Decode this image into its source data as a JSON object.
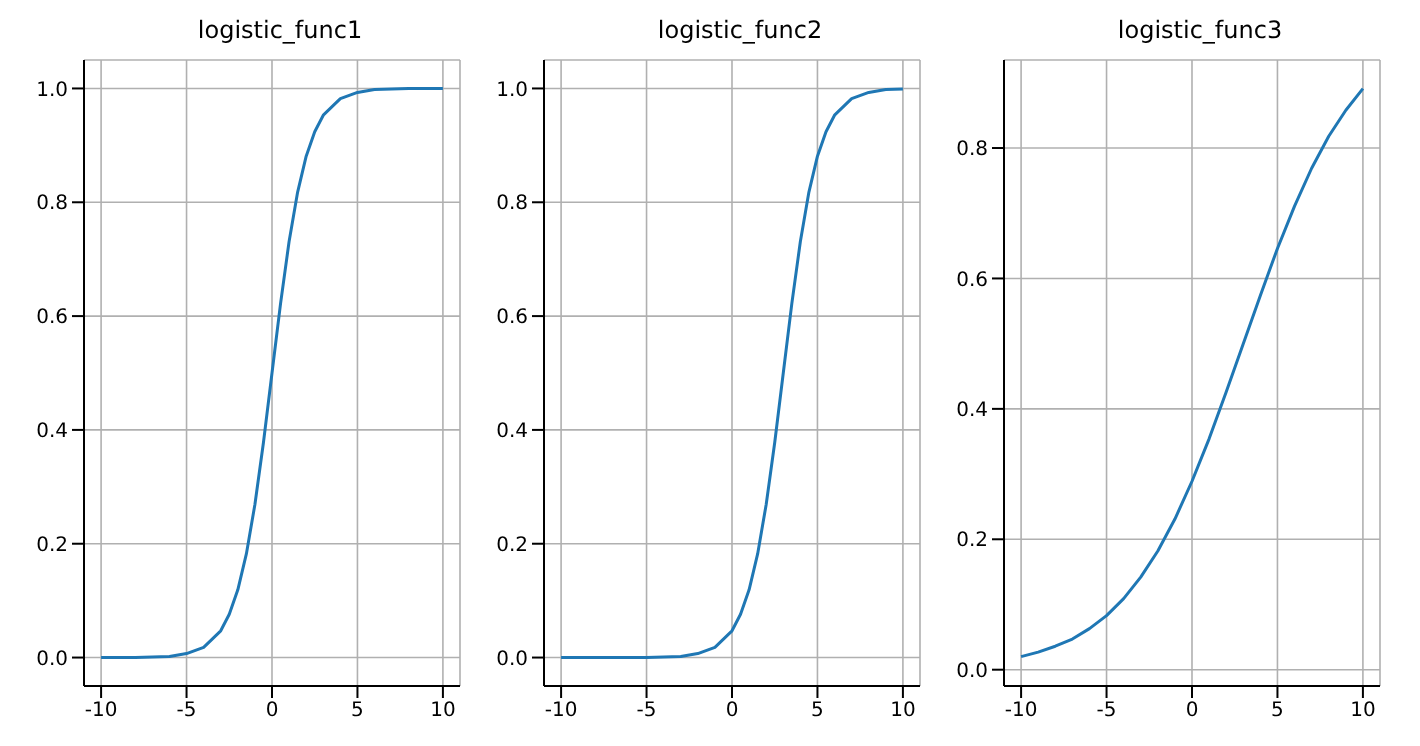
{
  "chart_data": [
    {
      "type": "line",
      "title": "logistic_func1",
      "x": [
        -10,
        -9,
        -8,
        -7,
        -6,
        -5,
        -4,
        -3,
        -2.5,
        -2,
        -1.5,
        -1,
        -0.5,
        0,
        0.5,
        1,
        1.5,
        2,
        2.5,
        3,
        4,
        5,
        6,
        7,
        8,
        9,
        10
      ],
      "series": [
        {
          "color": "#1f77b4",
          "values": [
            0,
            0,
            0,
            0.001,
            0.002,
            0.007,
            0.018,
            0.047,
            0.076,
            0.119,
            0.182,
            0.269,
            0.378,
            0.5,
            0.622,
            0.731,
            0.818,
            0.881,
            0.924,
            0.953,
            0.982,
            0.993,
            0.998,
            0.999,
            1,
            1,
            1
          ]
        }
      ],
      "xlim": [
        -11,
        11
      ],
      "xticks": [
        -10,
        -5,
        0,
        5,
        10
      ],
      "ylim": [
        -0.05,
        1.05
      ],
      "yticks": [
        {
          "value": 0,
          "label": "0.0"
        },
        {
          "value": 0.2,
          "label": "0.2"
        },
        {
          "value": 0.4,
          "label": "0.4"
        },
        {
          "value": 0.6,
          "label": "0.6"
        },
        {
          "value": 0.8,
          "label": "0.8"
        },
        {
          "value": 1,
          "label": "1.0"
        }
      ],
      "grid": true,
      "marker": "none",
      "line_style": "solid"
    },
    {
      "type": "line",
      "title": "logistic_func2",
      "x": [
        -10,
        -8,
        -6,
        -5,
        -4,
        -3,
        -2,
        -1,
        0,
        0.5,
        1,
        1.5,
        2,
        2.5,
        3,
        3.5,
        4,
        4.5,
        5,
        5.5,
        6,
        7,
        8,
        9,
        10
      ],
      "series": [
        {
          "color": "#1f77b4",
          "values": [
            0,
            0,
            0,
            0,
            0.001,
            0.002,
            0.007,
            0.018,
            0.047,
            0.076,
            0.119,
            0.182,
            0.269,
            0.378,
            0.5,
            0.622,
            0.731,
            0.818,
            0.881,
            0.924,
            0.953,
            0.982,
            0.993,
            0.998,
            0.999
          ]
        }
      ],
      "xlim": [
        -11,
        11
      ],
      "xticks": [
        -10,
        -5,
        0,
        5,
        10
      ],
      "ylim": [
        -0.05,
        1.05
      ],
      "yticks": [
        {
          "value": 0,
          "label": "0.0"
        },
        {
          "value": 0.2,
          "label": "0.2"
        },
        {
          "value": 0.4,
          "label": "0.4"
        },
        {
          "value": 0.6,
          "label": "0.6"
        },
        {
          "value": 0.8,
          "label": "0.8"
        },
        {
          "value": 1,
          "label": "1.0"
        }
      ],
      "grid": true,
      "marker": "none",
      "line_style": "solid"
    },
    {
      "type": "line",
      "title": "logistic_func3",
      "x": [
        -10,
        -9,
        -8,
        -7,
        -6,
        -5,
        -4,
        -3,
        -2,
        -1,
        0,
        1,
        2,
        3,
        4,
        5,
        6,
        7,
        8,
        9,
        10
      ],
      "series": [
        {
          "color": "#1f77b4",
          "values": [
            0.02,
            0.027,
            0.036,
            0.047,
            0.063,
            0.083,
            0.109,
            0.142,
            0.182,
            0.231,
            0.289,
            0.354,
            0.426,
            0.5,
            0.574,
            0.646,
            0.711,
            0.769,
            0.818,
            0.858,
            0.891
          ]
        }
      ],
      "xlim": [
        -11,
        11
      ],
      "xticks": [
        -10,
        -5,
        0,
        5,
        10
      ],
      "ylim": [
        -0.025,
        0.935
      ],
      "yticks": [
        {
          "value": 0,
          "label": "0.0"
        },
        {
          "value": 0.2,
          "label": "0.2"
        },
        {
          "value": 0.4,
          "label": "0.4"
        },
        {
          "value": 0.6,
          "label": "0.6"
        },
        {
          "value": 0.8,
          "label": "0.8"
        }
      ],
      "grid": true,
      "marker": "none",
      "line_style": "solid"
    }
  ]
}
